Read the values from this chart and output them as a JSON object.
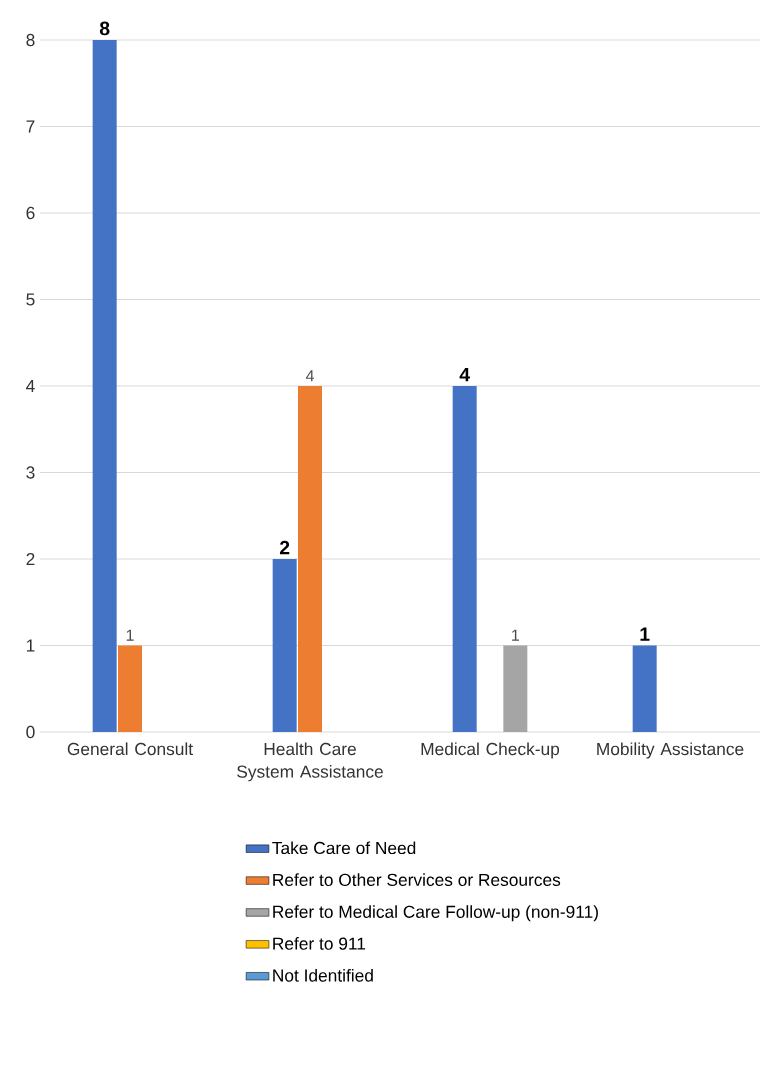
{
  "chart_data": {
    "type": "bar",
    "categories": [
      "General Consult",
      "Health Care System Assistance",
      "Medical Check-up",
      "Mobility Assistance"
    ],
    "series": [
      {
        "name": "Take Care of Need",
        "color": "#4472c4",
        "values": [
          8,
          2,
          4,
          1
        ]
      },
      {
        "name": "Refer to Other Services or Resources",
        "color": "#ed7d31",
        "values": [
          1,
          4,
          null,
          null
        ]
      },
      {
        "name": "Refer to Medical Care Follow-up (non-911)",
        "color": "#a5a5a5",
        "values": [
          null,
          null,
          1,
          null
        ]
      },
      {
        "name": "Refer to 911",
        "color": "#ffc000",
        "values": [
          null,
          null,
          null,
          null
        ]
      },
      {
        "name": "Not Identified",
        "color": "#5b9bd5",
        "values": [
          null,
          null,
          null,
          null
        ]
      }
    ],
    "ylim": [
      0,
      8
    ],
    "yticks": [
      0,
      1,
      2,
      3,
      4,
      5,
      6,
      7,
      8
    ],
    "grid": "y",
    "legend": "bottom",
    "data_labels": true
  }
}
